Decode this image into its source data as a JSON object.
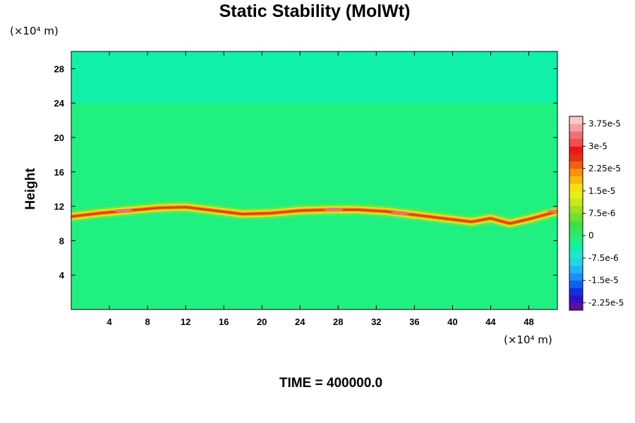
{
  "chart_data": {
    "type": "heatmap",
    "title": "Static Stability (MolWt)",
    "ylabel": "Height",
    "xlabel": "",
    "x_unit_label": "(×10⁴ m)",
    "y_unit_label": "(×10⁴ m)",
    "xlim": [
      0,
      51
    ],
    "ylim": [
      0,
      30
    ],
    "x_ticks": [
      "4",
      "8",
      "12",
      "16",
      "20",
      "24",
      "28",
      "32",
      "36",
      "40",
      "44",
      "48"
    ],
    "x_tick_values": [
      4,
      8,
      12,
      16,
      20,
      24,
      28,
      32,
      36,
      40,
      44,
      48
    ],
    "y_ticks": [
      "4",
      "8",
      "12",
      "16",
      "20",
      "24",
      "28"
    ],
    "y_tick_values": [
      4,
      8,
      12,
      16,
      20,
      24,
      28
    ],
    "background_value": -2e-06,
    "upper_layer_value": -4e-06,
    "upper_layer_start_height": 24,
    "stable_layer": {
      "height_profile": [
        [
          0,
          10.8
        ],
        [
          3,
          11.2
        ],
        [
          6,
          11.5
        ],
        [
          9,
          11.8
        ],
        [
          12,
          11.9
        ],
        [
          15,
          11.5
        ],
        [
          18,
          11.1
        ],
        [
          21,
          11.2
        ],
        [
          24,
          11.5
        ],
        [
          27,
          11.6
        ],
        [
          30,
          11.6
        ],
        [
          33,
          11.4
        ],
        [
          36,
          11.0
        ],
        [
          39,
          10.6
        ],
        [
          42,
          10.2
        ],
        [
          44,
          10.6
        ],
        [
          46,
          10.0
        ],
        [
          48,
          10.5
        ],
        [
          51,
          11.4
        ]
      ],
      "peak_value": 3.5e-05,
      "peak_locations": [
        5.5,
        27.5,
        34.5,
        51
      ]
    },
    "colorbar": {
      "min": -2.5e-05,
      "max": 4e-05,
      "step": 2.5e-06,
      "tick_labels": [
        "3.75e-5",
        "3e-5",
        "2.25e-5",
        "1.5e-5",
        "7.5e-6",
        "0",
        "-7.5e-6",
        "-1.5e-5",
        "-2.25e-5"
      ],
      "tick_values": [
        3.75e-05,
        3e-05,
        2.25e-05,
        1.5e-05,
        7.5e-06,
        0,
        -7.5e-06,
        -1.5e-05,
        -2.25e-05
      ],
      "colors": [
        "#5a10a0",
        "#3010c8",
        "#1030e0",
        "#1060f0",
        "#1a90f8",
        "#20b8f0",
        "#20d8e0",
        "#20e8c8",
        "#10f0a8",
        "#20f080",
        "#30e860",
        "#40e040",
        "#70e030",
        "#a0e020",
        "#c8e818",
        "#e8f010",
        "#f8e010",
        "#f8b810",
        "#f89010",
        "#f06010",
        "#e83010",
        "#e81818",
        "#f05050",
        "#f07070",
        "#f8a0a0",
        "#f8c8c8"
      ],
      "position": "right"
    }
  },
  "time_label": "TIME = 400000.0"
}
